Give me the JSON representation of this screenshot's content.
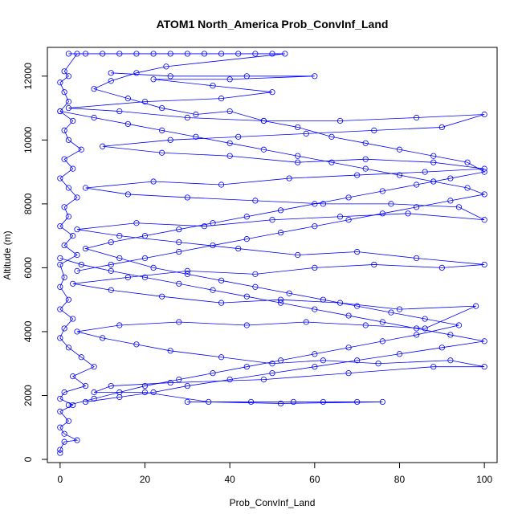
{
  "chart_data": {
    "type": "line",
    "title": "ATOM1 North_America Prob_ConvInf_Land",
    "xlabel": "Prob_ConvInf_Land",
    "ylabel": "Altitude (m)",
    "xlim": [
      -3,
      103
    ],
    "ylim": [
      -100,
      12900
    ],
    "x_ticks": [
      "0",
      "20",
      "40",
      "60",
      "80",
      "100"
    ],
    "y_ticks": [
      "0",
      "2000",
      "4000",
      "6000",
      "8000",
      "10000",
      "12000"
    ],
    "x_tick_values": [
      0,
      20,
      40,
      60,
      80,
      100
    ],
    "y_tick_values": [
      0,
      2000,
      4000,
      6000,
      8000,
      10000,
      12000
    ],
    "grid": false,
    "legend": "none",
    "marker": "open-circle",
    "series_color": "#0000ff",
    "series": [
      {
        "points": [
          [
            0,
            200
          ],
          [
            0,
            300
          ],
          [
            1,
            550
          ],
          [
            4,
            600
          ],
          [
            1,
            800
          ],
          [
            0,
            1000
          ],
          [
            2,
            1200
          ],
          [
            0,
            1500
          ],
          [
            3,
            1700
          ],
          [
            0,
            1900
          ],
          [
            1,
            2100
          ],
          [
            6,
            2300
          ],
          [
            3,
            2600
          ],
          [
            8,
            2900
          ],
          [
            5,
            3200
          ],
          [
            2,
            3500
          ],
          [
            0,
            3800
          ],
          [
            1,
            4100
          ],
          [
            3,
            4400
          ],
          [
            0,
            4700
          ],
          [
            2,
            5000
          ],
          [
            0,
            5400
          ],
          [
            1,
            5700
          ],
          [
            0,
            6100
          ],
          [
            4,
            6400
          ],
          [
            1,
            6700
          ],
          [
            3,
            7000
          ],
          [
            0,
            7300
          ],
          [
            2,
            7600
          ],
          [
            1,
            7900
          ],
          [
            4,
            8200
          ],
          [
            2,
            8500
          ],
          [
            0,
            8800
          ],
          [
            3,
            9100
          ],
          [
            1,
            9400
          ],
          [
            5,
            9700
          ],
          [
            2,
            10000
          ],
          [
            1,
            10300
          ],
          [
            3,
            10600
          ],
          [
            0,
            10900
          ],
          [
            2,
            11200
          ],
          [
            1,
            11500
          ],
          [
            0,
            11800
          ],
          [
            2,
            12000
          ],
          [
            1,
            12150
          ],
          [
            4,
            12700
          ]
        ]
      },
      {
        "points": [
          [
            30,
            1800
          ],
          [
            45,
            1800
          ],
          [
            55,
            1800
          ],
          [
            62,
            1800
          ],
          [
            70,
            1800
          ],
          [
            76,
            1800
          ],
          [
            52,
            1750
          ],
          [
            35,
            1800
          ],
          [
            20,
            2100
          ],
          [
            8,
            2100
          ],
          [
            12,
            2300
          ],
          [
            26,
            2400
          ],
          [
            48,
            2500
          ],
          [
            68,
            2700
          ],
          [
            88,
            2900
          ],
          [
            100,
            2900
          ],
          [
            92,
            3100
          ],
          [
            75,
            3000
          ],
          [
            62,
            3100
          ],
          [
            50,
            3000
          ],
          [
            38,
            3200
          ],
          [
            26,
            3400
          ],
          [
            18,
            3600
          ],
          [
            10,
            3800
          ],
          [
            4,
            4000
          ],
          [
            14,
            4200
          ],
          [
            28,
            4300
          ],
          [
            44,
            4200
          ],
          [
            58,
            4300
          ],
          [
            72,
            4200
          ],
          [
            86,
            4100
          ],
          [
            98,
            4800
          ],
          [
            80,
            4700
          ],
          [
            66,
            4900
          ],
          [
            52,
            5000
          ],
          [
            38,
            4900
          ],
          [
            24,
            5100
          ],
          [
            12,
            5300
          ],
          [
            3,
            5500
          ],
          [
            16,
            5700
          ],
          [
            30,
            5900
          ],
          [
            46,
            5800
          ],
          [
            60,
            6000
          ],
          [
            74,
            6100
          ],
          [
            90,
            6000
          ],
          [
            100,
            6100
          ],
          [
            84,
            6300
          ],
          [
            70,
            6500
          ],
          [
            56,
            6400
          ],
          [
            42,
            6600
          ],
          [
            28,
            6800
          ],
          [
            14,
            7000
          ],
          [
            4,
            7200
          ],
          [
            18,
            7400
          ],
          [
            34,
            7300
          ],
          [
            50,
            7500
          ],
          [
            66,
            7600
          ],
          [
            82,
            7700
          ],
          [
            100,
            7500
          ],
          [
            94,
            7900
          ],
          [
            78,
            8000
          ],
          [
            62,
            8000
          ],
          [
            46,
            8100
          ],
          [
            30,
            8200
          ],
          [
            16,
            8300
          ],
          [
            6,
            8500
          ],
          [
            22,
            8700
          ],
          [
            38,
            8600
          ],
          [
            54,
            8800
          ],
          [
            70,
            8900
          ],
          [
            86,
            9000
          ],
          [
            100,
            9100
          ],
          [
            88,
            9300
          ],
          [
            72,
            9400
          ],
          [
            56,
            9300
          ],
          [
            40,
            9500
          ],
          [
            24,
            9600
          ],
          [
            10,
            9800
          ],
          [
            26,
            10000
          ],
          [
            42,
            10100
          ],
          [
            58,
            10200
          ],
          [
            74,
            10300
          ],
          [
            90,
            10400
          ],
          [
            100,
            10800
          ],
          [
            84,
            10700
          ],
          [
            66,
            10600
          ],
          [
            48,
            10600
          ],
          [
            30,
            10700
          ],
          [
            14,
            10900
          ],
          [
            2,
            11000
          ],
          [
            20,
            11200
          ],
          [
            38,
            11300
          ],
          [
            50,
            11500
          ],
          [
            36,
            11700
          ],
          [
            22,
            11900
          ],
          [
            40,
            11900
          ],
          [
            60,
            12000
          ],
          [
            44,
            12000
          ],
          [
            26,
            12000
          ],
          [
            12,
            12100
          ]
        ]
      },
      {
        "points": [
          [
            2,
            12700
          ],
          [
            6,
            12700
          ],
          [
            10,
            12700
          ],
          [
            14,
            12700
          ],
          [
            18,
            12700
          ],
          [
            22,
            12700
          ],
          [
            26,
            12700
          ],
          [
            30,
            12700
          ],
          [
            34,
            12700
          ],
          [
            38,
            12700
          ],
          [
            42,
            12700
          ],
          [
            46,
            12700
          ],
          [
            50,
            12700
          ],
          [
            53,
            12700
          ],
          [
            25,
            12300
          ],
          [
            18,
            12100
          ],
          [
            12,
            11850
          ],
          [
            8,
            11600
          ],
          [
            16,
            11300
          ],
          [
            24,
            11000
          ],
          [
            32,
            10800
          ],
          [
            40,
            10900
          ],
          [
            48,
            10600
          ],
          [
            56,
            10400
          ],
          [
            64,
            10100
          ],
          [
            72,
            9900
          ],
          [
            80,
            9700
          ],
          [
            88,
            9500
          ],
          [
            96,
            9300
          ],
          [
            100,
            9000
          ],
          [
            92,
            8800
          ],
          [
            84,
            8600
          ],
          [
            76,
            8400
          ],
          [
            68,
            8200
          ],
          [
            60,
            8000
          ],
          [
            52,
            7800
          ],
          [
            44,
            7600
          ],
          [
            36,
            7400
          ],
          [
            28,
            7200
          ],
          [
            20,
            7000
          ],
          [
            12,
            6800
          ],
          [
            6,
            6600
          ],
          [
            14,
            6300
          ],
          [
            22,
            6000
          ],
          [
            30,
            5800
          ],
          [
            38,
            5600
          ],
          [
            46,
            5400
          ],
          [
            54,
            5200
          ],
          [
            62,
            5000
          ],
          [
            70,
            4800
          ],
          [
            78,
            4600
          ],
          [
            86,
            4400
          ],
          [
            94,
            4200
          ],
          [
            84,
            3900
          ],
          [
            76,
            3700
          ],
          [
            68,
            3500
          ],
          [
            60,
            3300
          ],
          [
            52,
            3100
          ],
          [
            44,
            2900
          ],
          [
            36,
            2700
          ],
          [
            28,
            2500
          ],
          [
            20,
            2300
          ],
          [
            14,
            2100
          ],
          [
            8,
            1900
          ],
          [
            2,
            1700
          ]
        ]
      },
      {
        "points": [
          [
            0,
            6300
          ],
          [
            5,
            6100
          ],
          [
            12,
            5900
          ],
          [
            20,
            5700
          ],
          [
            28,
            5500
          ],
          [
            36,
            5300
          ],
          [
            44,
            5100
          ],
          [
            52,
            4900
          ],
          [
            60,
            4700
          ],
          [
            68,
            4500
          ],
          [
            76,
            4300
          ],
          [
            84,
            4100
          ],
          [
            92,
            3900
          ],
          [
            100,
            3700
          ],
          [
            90,
            3500
          ],
          [
            80,
            3300
          ],
          [
            70,
            3100
          ],
          [
            60,
            2900
          ],
          [
            50,
            2700
          ],
          [
            40,
            2500
          ],
          [
            30,
            2300
          ],
          [
            22,
            2100
          ],
          [
            14,
            1950
          ],
          [
            6,
            1800
          ]
        ]
      },
      {
        "points": [
          [
            0,
            10900
          ],
          [
            8,
            10700
          ],
          [
            16,
            10500
          ],
          [
            24,
            10300
          ],
          [
            32,
            10100
          ],
          [
            40,
            9900
          ],
          [
            48,
            9700
          ],
          [
            56,
            9500
          ],
          [
            64,
            9300
          ],
          [
            72,
            9100
          ],
          [
            80,
            8900
          ],
          [
            88,
            8700
          ],
          [
            96,
            8500
          ],
          [
            100,
            8300
          ],
          [
            92,
            8100
          ],
          [
            84,
            7900
          ],
          [
            76,
            7700
          ],
          [
            68,
            7500
          ],
          [
            60,
            7300
          ],
          [
            52,
            7100
          ],
          [
            44,
            6900
          ],
          [
            36,
            6700
          ],
          [
            28,
            6500
          ],
          [
            20,
            6300
          ],
          [
            12,
            6100
          ],
          [
            4,
            5900
          ]
        ]
      }
    ]
  }
}
